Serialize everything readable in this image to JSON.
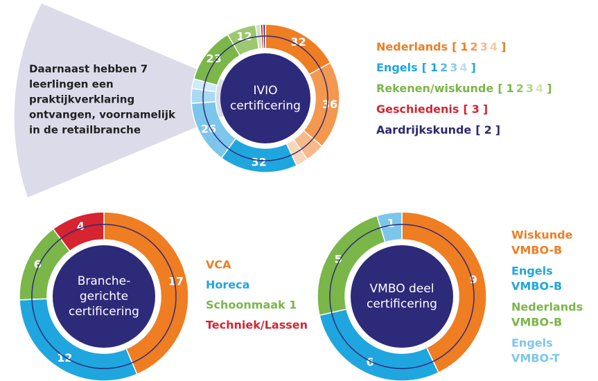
{
  "note_lines": [
    "Daarnaast hebben 7",
    "leerlingen een",
    "praktijkverklaring",
    "ontvangen, voornamelijk",
    "in de retailbranche"
  ],
  "brackets": [
    "[",
    "]"
  ],
  "chart_data": [
    {
      "type": "donut",
      "title_lines": [
        "IVIO",
        "certificering"
      ],
      "values": [
        32,
        36,
        8,
        5,
        32,
        26,
        6,
        4,
        23,
        12,
        2,
        1,
        1
      ],
      "colors": [
        "#ef7d22",
        "#f3984f",
        "#f7b98a",
        "#fad6b8",
        "#1fa6df",
        "#7cc6ec",
        "#a9d9f3",
        "#cfeaf8",
        "#7ab648",
        "#9cc86f",
        "#cfe3b8",
        "#d62431",
        "#2d2a6e"
      ],
      "labeled": [
        true,
        true,
        false,
        false,
        true,
        true,
        false,
        false,
        true,
        true,
        false,
        false,
        false
      ],
      "legend": [
        {
          "name": "Nederlands",
          "color": "#ef7d22",
          "levels": [
            "1",
            "2",
            "3",
            "4"
          ],
          "level_colors": [
            "#ef7d22",
            "#f3984f",
            "#f7b98a",
            "#f5c9a3"
          ]
        },
        {
          "name": "Engels",
          "color": "#1fa6df",
          "levels": [
            "1",
            "2",
            "3",
            "4"
          ],
          "level_colors": [
            "#1fa6df",
            "#5ab8e6",
            "#8fcdee",
            "#b9e0f4"
          ]
        },
        {
          "name": "Rekenen/wiskunde",
          "color": "#7ab648",
          "levels": [
            "1",
            "2",
            "3",
            "4"
          ],
          "level_colors": [
            "#7ab648",
            "#93c463",
            "#b3d58d",
            "#cfe3b8"
          ]
        },
        {
          "name": "Geschiedenis",
          "color": "#d62431",
          "levels": [
            "3"
          ],
          "level_colors": [
            "#d62431"
          ]
        },
        {
          "name": "Aardrijkskunde",
          "color": "#2d2a6e",
          "levels": [
            "2"
          ],
          "level_colors": [
            "#2d2a6e"
          ]
        }
      ]
    },
    {
      "type": "donut",
      "title_lines": [
        "Branche-",
        "gerichte",
        "certificering"
      ],
      "values": [
        17,
        12,
        6,
        4
      ],
      "colors": [
        "#ef7d22",
        "#1fa6df",
        "#7ab648",
        "#d62431"
      ],
      "labeled": [
        true,
        true,
        true,
        true
      ],
      "legend": [
        {
          "lines": [
            "VCA"
          ],
          "color": "#ef7d22"
        },
        {
          "lines": [
            "Horeca"
          ],
          "color": "#1fa6df"
        },
        {
          "lines": [
            "Schoonmaak 1"
          ],
          "color": "#7ab648"
        },
        {
          "lines": [
            "Techniek/Lassen"
          ],
          "color": "#d62431"
        }
      ]
    },
    {
      "type": "donut",
      "title_lines": [
        "VMBO deel",
        "certificering"
      ],
      "values": [
        9,
        6,
        5,
        1
      ],
      "colors": [
        "#ef7d22",
        "#1fa6df",
        "#7ab648",
        "#7cc6ec"
      ],
      "labeled": [
        true,
        true,
        true,
        true
      ],
      "legend": [
        {
          "lines": [
            "Wiskunde",
            "VMBO-B"
          ],
          "color": "#ef7d22"
        },
        {
          "lines": [
            "Engels",
            "VMBO-B"
          ],
          "color": "#1fa6df"
        },
        {
          "lines": [
            "Nederlands",
            "VMBO-B"
          ],
          "color": "#7ab648"
        },
        {
          "lines": [
            "Engels",
            "VMBO-T"
          ],
          "color": "#7cc6ec"
        }
      ]
    }
  ]
}
